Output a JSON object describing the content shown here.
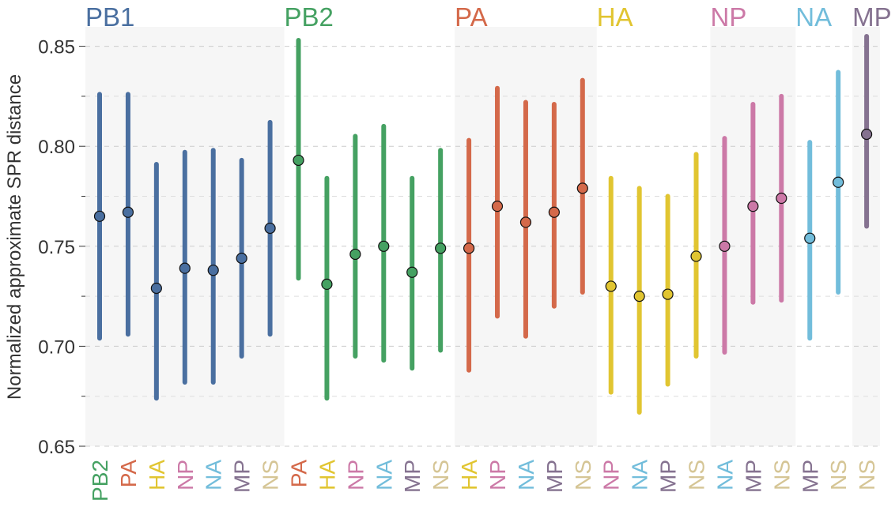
{
  "chart_data": {
    "type": "scatter",
    "subtype": "point-range",
    "title": "",
    "xlabel": "",
    "ylabel": "Normalized approximate SPR distance",
    "ylim": [
      0.65,
      0.86
    ],
    "yticks": [
      0.65,
      0.7,
      0.75,
      0.8,
      0.85
    ],
    "ytick_labels": [
      "0.65",
      "0.70",
      "0.75",
      "0.80",
      "0.85"
    ],
    "grid": true,
    "segment_colors": {
      "PB1": "#4a6fa0",
      "PB2": "#45a162",
      "PA": "#d4694a",
      "HA": "#e1c531",
      "NP": "#cc79a7",
      "NA": "#72bddb",
      "MP": "#857290",
      "NS": "#d5c595"
    },
    "groups": [
      {
        "name": "PB1",
        "shaded": true,
        "points": [
          {
            "partner": "PB2",
            "value": 0.765,
            "low": 0.704,
            "high": 0.826
          },
          {
            "partner": "PA",
            "value": 0.767,
            "low": 0.706,
            "high": 0.826
          },
          {
            "partner": "HA",
            "value": 0.729,
            "low": 0.674,
            "high": 0.791
          },
          {
            "partner": "NP",
            "value": 0.739,
            "low": 0.682,
            "high": 0.797
          },
          {
            "partner": "NA",
            "value": 0.738,
            "low": 0.682,
            "high": 0.798
          },
          {
            "partner": "MP",
            "value": 0.744,
            "low": 0.695,
            "high": 0.793
          },
          {
            "partner": "NS",
            "value": 0.759,
            "low": 0.706,
            "high": 0.812
          }
        ]
      },
      {
        "name": "PB2",
        "shaded": false,
        "points": [
          {
            "partner": "PA",
            "value": 0.793,
            "low": 0.734,
            "high": 0.853
          },
          {
            "partner": "HA",
            "value": 0.731,
            "low": 0.674,
            "high": 0.784
          },
          {
            "partner": "NP",
            "value": 0.746,
            "low": 0.695,
            "high": 0.805
          },
          {
            "partner": "NA",
            "value": 0.75,
            "low": 0.693,
            "high": 0.81
          },
          {
            "partner": "MP",
            "value": 0.737,
            "low": 0.689,
            "high": 0.784
          },
          {
            "partner": "NS",
            "value": 0.749,
            "low": 0.698,
            "high": 0.798
          }
        ]
      },
      {
        "name": "PA",
        "shaded": true,
        "points": [
          {
            "partner": "HA",
            "value": 0.749,
            "low": 0.688,
            "high": 0.803
          },
          {
            "partner": "NP",
            "value": 0.77,
            "low": 0.715,
            "high": 0.829
          },
          {
            "partner": "NA",
            "value": 0.762,
            "low": 0.705,
            "high": 0.822
          },
          {
            "partner": "MP",
            "value": 0.767,
            "low": 0.72,
            "high": 0.821
          },
          {
            "partner": "NS",
            "value": 0.779,
            "low": 0.727,
            "high": 0.833
          }
        ]
      },
      {
        "name": "HA",
        "shaded": false,
        "points": [
          {
            "partner": "NP",
            "value": 0.73,
            "low": 0.677,
            "high": 0.784
          },
          {
            "partner": "NA",
            "value": 0.725,
            "low": 0.667,
            "high": 0.779
          },
          {
            "partner": "MP",
            "value": 0.726,
            "low": 0.681,
            "high": 0.775
          },
          {
            "partner": "NS",
            "value": 0.745,
            "low": 0.695,
            "high": 0.796
          }
        ]
      },
      {
        "name": "NP",
        "shaded": true,
        "points": [
          {
            "partner": "NA",
            "value": 0.75,
            "low": 0.697,
            "high": 0.804
          },
          {
            "partner": "MP",
            "value": 0.77,
            "low": 0.722,
            "high": 0.821
          },
          {
            "partner": "NS",
            "value": 0.774,
            "low": 0.723,
            "high": 0.825
          }
        ]
      },
      {
        "name": "NA",
        "shaded": false,
        "points": [
          {
            "partner": "MP",
            "value": 0.754,
            "low": 0.704,
            "high": 0.802
          },
          {
            "partner": "NS",
            "value": 0.782,
            "low": 0.727,
            "high": 0.837
          }
        ]
      },
      {
        "name": "MP",
        "shaded": true,
        "points": [
          {
            "partner": "NS",
            "value": 0.806,
            "low": 0.76,
            "high": 0.855
          }
        ]
      }
    ]
  }
}
